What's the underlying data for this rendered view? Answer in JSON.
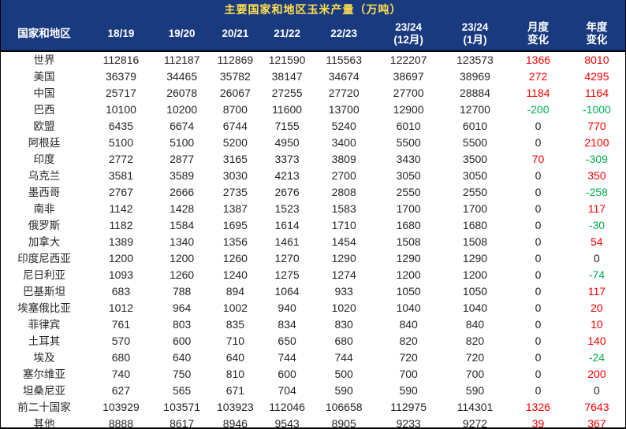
{
  "colors": {
    "header_bg": "#1A3A80",
    "title_text": "#FFE14D",
    "header_text": "#FFFFFF",
    "body_text": "#262626",
    "positive": "#FF0000",
    "negative": "#00B050",
    "border": "#000000"
  },
  "chart_data": {
    "type": "table",
    "title": "主要国家和地区玉米产量（万吨）",
    "columns": [
      {
        "label": "国家和地区"
      },
      {
        "label": "18/19"
      },
      {
        "label": "19/20"
      },
      {
        "label": "20/21"
      },
      {
        "label": "21/22"
      },
      {
        "label": "22/23"
      },
      {
        "label": "23/24",
        "label2": "(12月)"
      },
      {
        "label": "23/24",
        "label2": "(1月)"
      },
      {
        "label": "月度",
        "label2": "变化"
      },
      {
        "label": "年度",
        "label2": "变化"
      }
    ],
    "rows": [
      {
        "name": "世界",
        "values": [
          "112816",
          "112187",
          "112869",
          "121590",
          "115563",
          "122207",
          "123573"
        ],
        "monthly": {
          "value": "1366",
          "trend": "pos"
        },
        "yearly": {
          "value": "8010",
          "trend": "pos"
        }
      },
      {
        "name": "美国",
        "values": [
          "36379",
          "34465",
          "35782",
          "38147",
          "34674",
          "38697",
          "38969"
        ],
        "monthly": {
          "value": "272",
          "trend": "pos"
        },
        "yearly": {
          "value": "4295",
          "trend": "pos"
        }
      },
      {
        "name": "中国",
        "values": [
          "25717",
          "26078",
          "26067",
          "27255",
          "27720",
          "27700",
          "28884"
        ],
        "monthly": {
          "value": "1184",
          "trend": "pos"
        },
        "yearly": {
          "value": "1164",
          "trend": "pos"
        }
      },
      {
        "name": "巴西",
        "values": [
          "10100",
          "10200",
          "8700",
          "11600",
          "13700",
          "12900",
          "12700"
        ],
        "monthly": {
          "value": "-200",
          "trend": "neg"
        },
        "yearly": {
          "value": "-1000",
          "trend": "neg"
        }
      },
      {
        "name": "欧盟",
        "values": [
          "6435",
          "6674",
          "6744",
          "7155",
          "5240",
          "6010",
          "6010"
        ],
        "monthly": {
          "value": "0",
          "trend": "zero"
        },
        "yearly": {
          "value": "770",
          "trend": "pos"
        }
      },
      {
        "name": "阿根廷",
        "values": [
          "5100",
          "5100",
          "5200",
          "4950",
          "3400",
          "5500",
          "5500"
        ],
        "monthly": {
          "value": "0",
          "trend": "zero"
        },
        "yearly": {
          "value": "2100",
          "trend": "pos"
        }
      },
      {
        "name": "印度",
        "values": [
          "2772",
          "2877",
          "3165",
          "3373",
          "3809",
          "3430",
          "3500"
        ],
        "monthly": {
          "value": "70",
          "trend": "pos"
        },
        "yearly": {
          "value": "-309",
          "trend": "neg"
        }
      },
      {
        "name": "乌克兰",
        "values": [
          "3581",
          "3589",
          "3030",
          "4213",
          "2700",
          "3050",
          "3050"
        ],
        "monthly": {
          "value": "0",
          "trend": "zero"
        },
        "yearly": {
          "value": "350",
          "trend": "pos"
        }
      },
      {
        "name": "墨西哥",
        "values": [
          "2767",
          "2666",
          "2735",
          "2676",
          "2808",
          "2550",
          "2550"
        ],
        "monthly": {
          "value": "0",
          "trend": "zero"
        },
        "yearly": {
          "value": "-258",
          "trend": "neg"
        }
      },
      {
        "name": "南非",
        "values": [
          "1142",
          "1428",
          "1387",
          "1523",
          "1583",
          "1700",
          "1700"
        ],
        "monthly": {
          "value": "0",
          "trend": "zero"
        },
        "yearly": {
          "value": "117",
          "trend": "pos"
        }
      },
      {
        "name": "俄罗斯",
        "values": [
          "1182",
          "1584",
          "1695",
          "1614",
          "1710",
          "1680",
          "1680"
        ],
        "monthly": {
          "value": "0",
          "trend": "zero"
        },
        "yearly": {
          "value": "-30",
          "trend": "neg"
        }
      },
      {
        "name": "加拿大",
        "values": [
          "1389",
          "1340",
          "1356",
          "1461",
          "1454",
          "1508",
          "1508"
        ],
        "monthly": {
          "value": "0",
          "trend": "zero"
        },
        "yearly": {
          "value": "54",
          "trend": "pos"
        }
      },
      {
        "name": "印度尼西亚",
        "values": [
          "1200",
          "1200",
          "1260",
          "1270",
          "1290",
          "1290",
          "1290"
        ],
        "monthly": {
          "value": "0",
          "trend": "zero"
        },
        "yearly": {
          "value": "0",
          "trend": "zero"
        }
      },
      {
        "name": "尼日利亚",
        "values": [
          "1093",
          "1260",
          "1240",
          "1275",
          "1274",
          "1200",
          "1200"
        ],
        "monthly": {
          "value": "0",
          "trend": "zero"
        },
        "yearly": {
          "value": "-74",
          "trend": "neg"
        }
      },
      {
        "name": "巴基斯坦",
        "values": [
          "683",
          "788",
          "894",
          "1064",
          "933",
          "1050",
          "1050"
        ],
        "monthly": {
          "value": "0",
          "trend": "zero"
        },
        "yearly": {
          "value": "117",
          "trend": "pos"
        }
      },
      {
        "name": "埃塞俄比亚",
        "values": [
          "1012",
          "964",
          "1002",
          "940",
          "1020",
          "1040",
          "1040"
        ],
        "monthly": {
          "value": "0",
          "trend": "zero"
        },
        "yearly": {
          "value": "20",
          "trend": "pos"
        }
      },
      {
        "name": "菲律宾",
        "values": [
          "761",
          "803",
          "835",
          "834",
          "830",
          "840",
          "840"
        ],
        "monthly": {
          "value": "0",
          "trend": "zero"
        },
        "yearly": {
          "value": "10",
          "trend": "pos"
        }
      },
      {
        "name": "土耳其",
        "values": [
          "570",
          "600",
          "710",
          "650",
          "680",
          "820",
          "820"
        ],
        "monthly": {
          "value": "0",
          "trend": "zero"
        },
        "yearly": {
          "value": "140",
          "trend": "pos"
        }
      },
      {
        "name": "埃及",
        "values": [
          "680",
          "640",
          "640",
          "744",
          "744",
          "720",
          "720"
        ],
        "monthly": {
          "value": "0",
          "trend": "zero"
        },
        "yearly": {
          "value": "-24",
          "trend": "neg"
        }
      },
      {
        "name": "塞尔维亚",
        "values": [
          "740",
          "750",
          "810",
          "600",
          "500",
          "700",
          "700"
        ],
        "monthly": {
          "value": "0",
          "trend": "zero"
        },
        "yearly": {
          "value": "200",
          "trend": "pos"
        }
      },
      {
        "name": "坦桑尼亚",
        "values": [
          "627",
          "565",
          "671",
          "704",
          "590",
          "590",
          "590"
        ],
        "monthly": {
          "value": "0",
          "trend": "zero"
        },
        "yearly": {
          "value": "0",
          "trend": "zero"
        }
      },
      {
        "name": "前二十国家",
        "values": [
          "103929",
          "103571",
          "103923",
          "112046",
          "106658",
          "112975",
          "114301"
        ],
        "monthly": {
          "value": "1326",
          "trend": "pos"
        },
        "yearly": {
          "value": "7643",
          "trend": "pos"
        }
      },
      {
        "name": "其他",
        "values": [
          "8888",
          "8617",
          "8946",
          "9543",
          "8905",
          "9233",
          "9272"
        ],
        "monthly": {
          "value": "39",
          "trend": "pos"
        },
        "yearly": {
          "value": "367",
          "trend": "pos"
        }
      }
    ]
  }
}
